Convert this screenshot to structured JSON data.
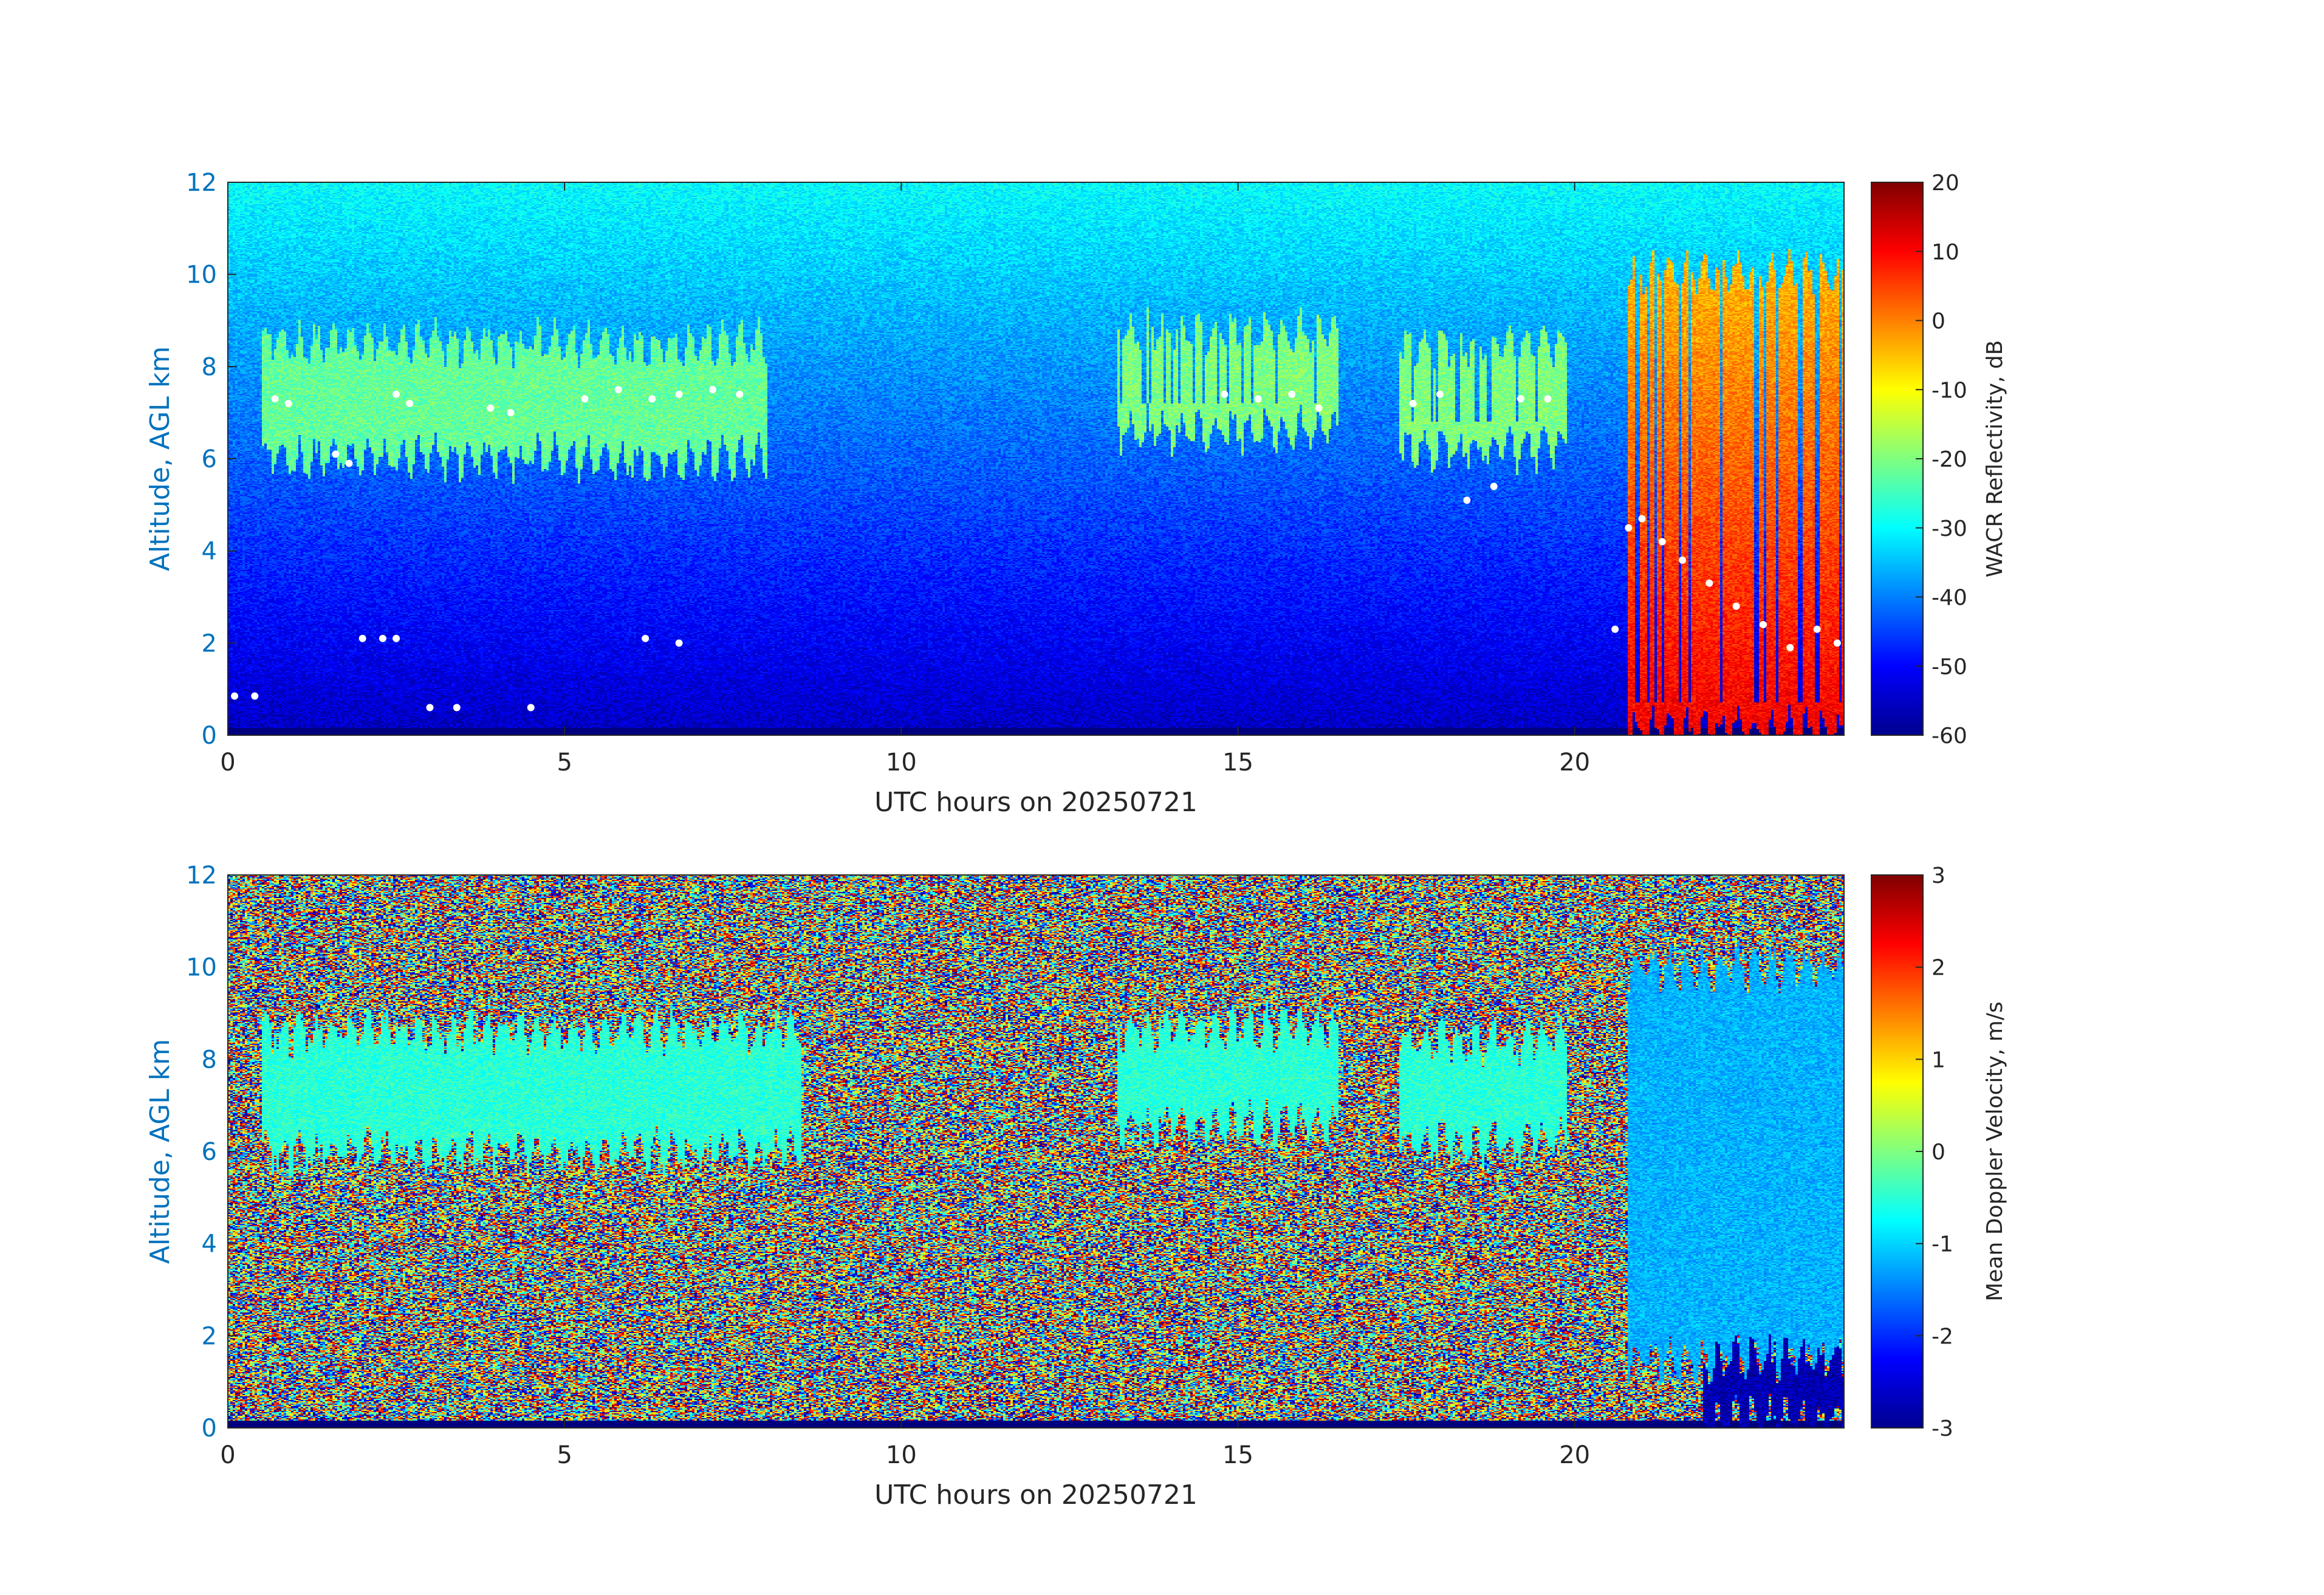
{
  "colors": {
    "axis_y_text": "#0072bd",
    "axis_text": "#262626",
    "background": "#ffffff",
    "echo_marker": "#ffffff"
  },
  "chart_data": [
    {
      "type": "heatmap",
      "colormap": "jet",
      "xlabel": "UTC hours on 20250721",
      "ylabel": "Altitude, AGL km",
      "xlim": [
        0,
        24
      ],
      "ylim": [
        0,
        12
      ],
      "xticks": [
        "0",
        "5",
        "10",
        "15",
        "20"
      ],
      "yticks": [
        "0",
        "2",
        "4",
        "6",
        "8",
        "10",
        "12"
      ],
      "colorbar": {
        "label": "WACR Reflectivity, dB",
        "range": [
          -60,
          20
        ],
        "ticks": [
          "20",
          "10",
          "0",
          "-10",
          "-20",
          "-30",
          "-40",
          "-50",
          "-60"
        ]
      },
      "background_field": "noise increasing with altitude: approx -55 dB near surface to -30 dB at 12 km",
      "cloud_layers": [
        {
          "t_start": 0.5,
          "t_end": 8.0,
          "z_base": 6.0,
          "z_top": 8.5,
          "value_db": -22
        },
        {
          "t_start": 13.2,
          "t_end": 16.5,
          "z_base": 6.6,
          "z_top": 8.7,
          "value_db": -20
        },
        {
          "t_start": 17.4,
          "t_end": 19.9,
          "z_base": 6.2,
          "z_top": 8.4,
          "value_db": -20
        },
        {
          "t_start": 20.8,
          "t_end": 24.0,
          "z_base": 0.1,
          "z_top": 10.0,
          "value_db": 5
        }
      ],
      "markers": [
        {
          "t": 0.1,
          "z": 0.85
        },
        {
          "t": 0.4,
          "z": 0.85
        },
        {
          "t": 0.7,
          "z": 7.3
        },
        {
          "t": 0.9,
          "z": 7.2
        },
        {
          "t": 1.6,
          "z": 6.1
        },
        {
          "t": 1.8,
          "z": 5.9
        },
        {
          "t": 2.0,
          "z": 2.1
        },
        {
          "t": 2.3,
          "z": 2.1
        },
        {
          "t": 2.5,
          "z": 2.1
        },
        {
          "t": 2.5,
          "z": 7.4
        },
        {
          "t": 2.7,
          "z": 7.2
        },
        {
          "t": 3.0,
          "z": 0.6
        },
        {
          "t": 3.4,
          "z": 0.6
        },
        {
          "t": 3.9,
          "z": 7.1
        },
        {
          "t": 4.2,
          "z": 7.0
        },
        {
          "t": 4.5,
          "z": 0.6
        },
        {
          "t": 5.3,
          "z": 7.3
        },
        {
          "t": 5.8,
          "z": 7.5
        },
        {
          "t": 6.2,
          "z": 2.1
        },
        {
          "t": 6.3,
          "z": 7.3
        },
        {
          "t": 6.7,
          "z": 2.0
        },
        {
          "t": 6.7,
          "z": 7.4
        },
        {
          "t": 7.2,
          "z": 7.5
        },
        {
          "t": 7.6,
          "z": 7.4
        },
        {
          "t": 14.8,
          "z": 7.4
        },
        {
          "t": 15.3,
          "z": 7.3
        },
        {
          "t": 15.8,
          "z": 7.4
        },
        {
          "t": 16.2,
          "z": 7.1
        },
        {
          "t": 17.6,
          "z": 7.2
        },
        {
          "t": 18.0,
          "z": 7.4
        },
        {
          "t": 18.4,
          "z": 5.1
        },
        {
          "t": 18.8,
          "z": 5.4
        },
        {
          "t": 19.2,
          "z": 7.3
        },
        {
          "t": 19.6,
          "z": 7.3
        },
        {
          "t": 20.6,
          "z": 2.3
        },
        {
          "t": 20.8,
          "z": 4.5
        },
        {
          "t": 21.0,
          "z": 4.7
        },
        {
          "t": 21.3,
          "z": 4.2
        },
        {
          "t": 21.6,
          "z": 3.8
        },
        {
          "t": 22.0,
          "z": 3.3
        },
        {
          "t": 22.4,
          "z": 2.8
        },
        {
          "t": 22.8,
          "z": 2.4
        },
        {
          "t": 23.2,
          "z": 1.9
        },
        {
          "t": 23.6,
          "z": 2.3
        },
        {
          "t": 23.9,
          "z": 2.0
        }
      ]
    },
    {
      "type": "heatmap",
      "colormap": "jet",
      "xlabel": "UTC hours on 20250721",
      "ylabel": "Altitude, AGL km",
      "xlim": [
        0,
        24
      ],
      "ylim": [
        0,
        12
      ],
      "xticks": [
        "0",
        "5",
        "10",
        "15",
        "20"
      ],
      "yticks": [
        "0",
        "2",
        "4",
        "6",
        "8",
        "10",
        "12"
      ],
      "colorbar": {
        "label": "Mean Doppler Velocity, m/s",
        "range": [
          -3,
          3
        ],
        "ticks": [
          "3",
          "2",
          "1",
          "0",
          "-1",
          "-2",
          "-3"
        ]
      },
      "background_field": "random noise spanning -3 to 3 m/s where no cloud",
      "cloud_layers": [
        {
          "t_start": 0.5,
          "t_end": 8.5,
          "z_base": 6.0,
          "z_top": 8.6,
          "value_ms": -0.5
        },
        {
          "t_start": 13.2,
          "t_end": 16.5,
          "z_base": 6.6,
          "z_top": 8.7,
          "value_ms": -0.5
        },
        {
          "t_start": 17.4,
          "t_end": 19.9,
          "z_base": 6.2,
          "z_top": 8.4,
          "value_ms": -0.5
        },
        {
          "t_start": 20.8,
          "t_end": 24.0,
          "z_base": 1.5,
          "z_top": 10.0,
          "value_ms": -1.2
        },
        {
          "t_start": 21.9,
          "t_end": 24.0,
          "z_base": 0.2,
          "z_top": 1.5,
          "value_ms": -2.7
        }
      ]
    }
  ]
}
